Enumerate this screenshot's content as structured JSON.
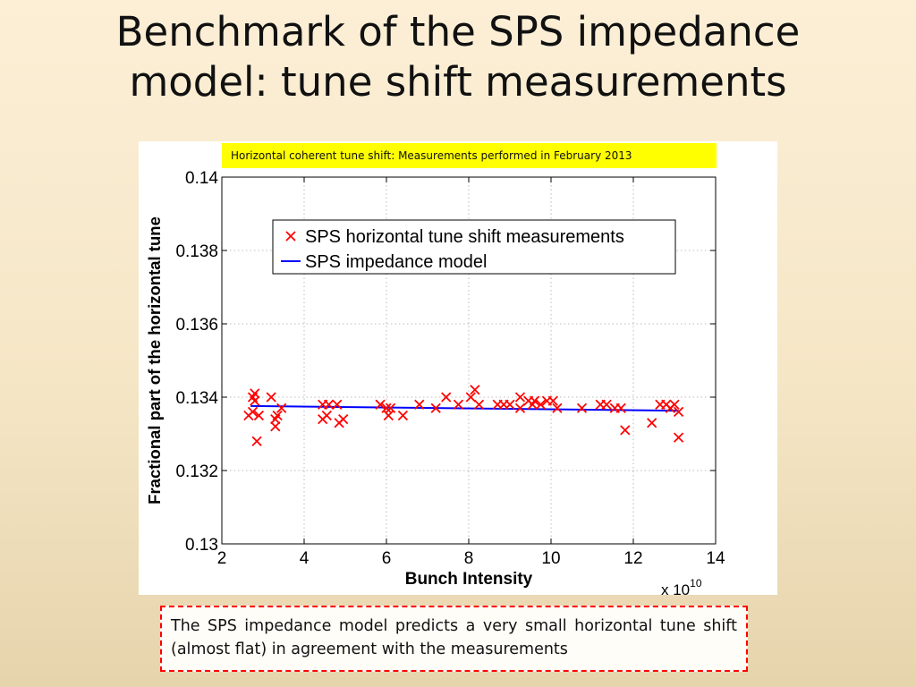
{
  "slide": {
    "title_line1": "Benchmark of the SPS impedance",
    "title_line2": "model: tune shift measurements",
    "subtitle": "Horizontal coherent tune shift: Measurements performed in February 2013",
    "caption": "The SPS impedance model predicts a very small horizontal tune shift (almost flat) in agreement with the measurements"
  },
  "colors": {
    "measurement": "#ff0000",
    "model": "#0000ff",
    "highlight": "#ffff00",
    "caption_border": "#ff0000"
  },
  "chart_data": {
    "type": "scatter",
    "xlabel": "Bunch Intensity",
    "ylabel": "Fractional part of the horizontal tune",
    "x_multiplier": "x 10",
    "x_multiplier_exp": "10",
    "xlim": [
      2,
      14
    ],
    "ylim": [
      0.13,
      0.14
    ],
    "xticks": [
      "2",
      "4",
      "6",
      "8",
      "10",
      "12",
      "14"
    ],
    "yticks": [
      "0.13",
      "0.132",
      "0.134",
      "0.136",
      "0.138",
      "0.14"
    ],
    "legend_position": "top-right",
    "grid": true,
    "series": [
      {
        "name": "SPS horizontal tune shift measurements",
        "marker": "x",
        "points": [
          [
            2.65,
            0.1335
          ],
          [
            2.75,
            0.134
          ],
          [
            2.8,
            0.1341
          ],
          [
            2.8,
            0.1339
          ],
          [
            2.85,
            0.1328
          ],
          [
            2.9,
            0.1335
          ],
          [
            2.75,
            0.1336
          ],
          [
            3.2,
            0.134
          ],
          [
            3.3,
            0.1332
          ],
          [
            3.3,
            0.1334
          ],
          [
            3.35,
            0.1335
          ],
          [
            3.45,
            0.1337
          ],
          [
            4.45,
            0.1338
          ],
          [
            4.45,
            0.1334
          ],
          [
            4.55,
            0.1335
          ],
          [
            4.6,
            0.1338
          ],
          [
            4.8,
            0.1338
          ],
          [
            4.85,
            0.1333
          ],
          [
            4.95,
            0.1334
          ],
          [
            5.85,
            0.1338
          ],
          [
            6.0,
            0.1337
          ],
          [
            6.05,
            0.1335
          ],
          [
            6.1,
            0.1337
          ],
          [
            6.4,
            0.1335
          ],
          [
            6.8,
            0.1338
          ],
          [
            7.2,
            0.1337
          ],
          [
            7.45,
            0.134
          ],
          [
            7.75,
            0.1338
          ],
          [
            8.05,
            0.134
          ],
          [
            8.15,
            0.1342
          ],
          [
            8.25,
            0.1338
          ],
          [
            8.7,
            0.1338
          ],
          [
            8.85,
            0.1338
          ],
          [
            9.0,
            0.1338
          ],
          [
            9.25,
            0.134
          ],
          [
            9.25,
            0.1337
          ],
          [
            9.45,
            0.1339
          ],
          [
            9.55,
            0.1338
          ],
          [
            9.6,
            0.1339
          ],
          [
            9.75,
            0.1338
          ],
          [
            9.9,
            0.1339
          ],
          [
            10.05,
            0.1339
          ],
          [
            10.15,
            0.1337
          ],
          [
            10.75,
            0.1337
          ],
          [
            11.2,
            0.1338
          ],
          [
            11.35,
            0.1338
          ],
          [
            11.55,
            0.1337
          ],
          [
            11.7,
            0.1337
          ],
          [
            11.8,
            0.1331
          ],
          [
            12.45,
            0.1333
          ],
          [
            12.65,
            0.1338
          ],
          [
            12.8,
            0.1338
          ],
          [
            12.9,
            0.1337
          ],
          [
            13.0,
            0.1338
          ],
          [
            13.1,
            0.1336
          ],
          [
            13.1,
            0.1329
          ]
        ]
      },
      {
        "name": "SPS impedance model",
        "type": "line",
        "x": [
          2.7,
          13.1
        ],
        "y": [
          0.13376,
          0.13363
        ]
      }
    ]
  }
}
